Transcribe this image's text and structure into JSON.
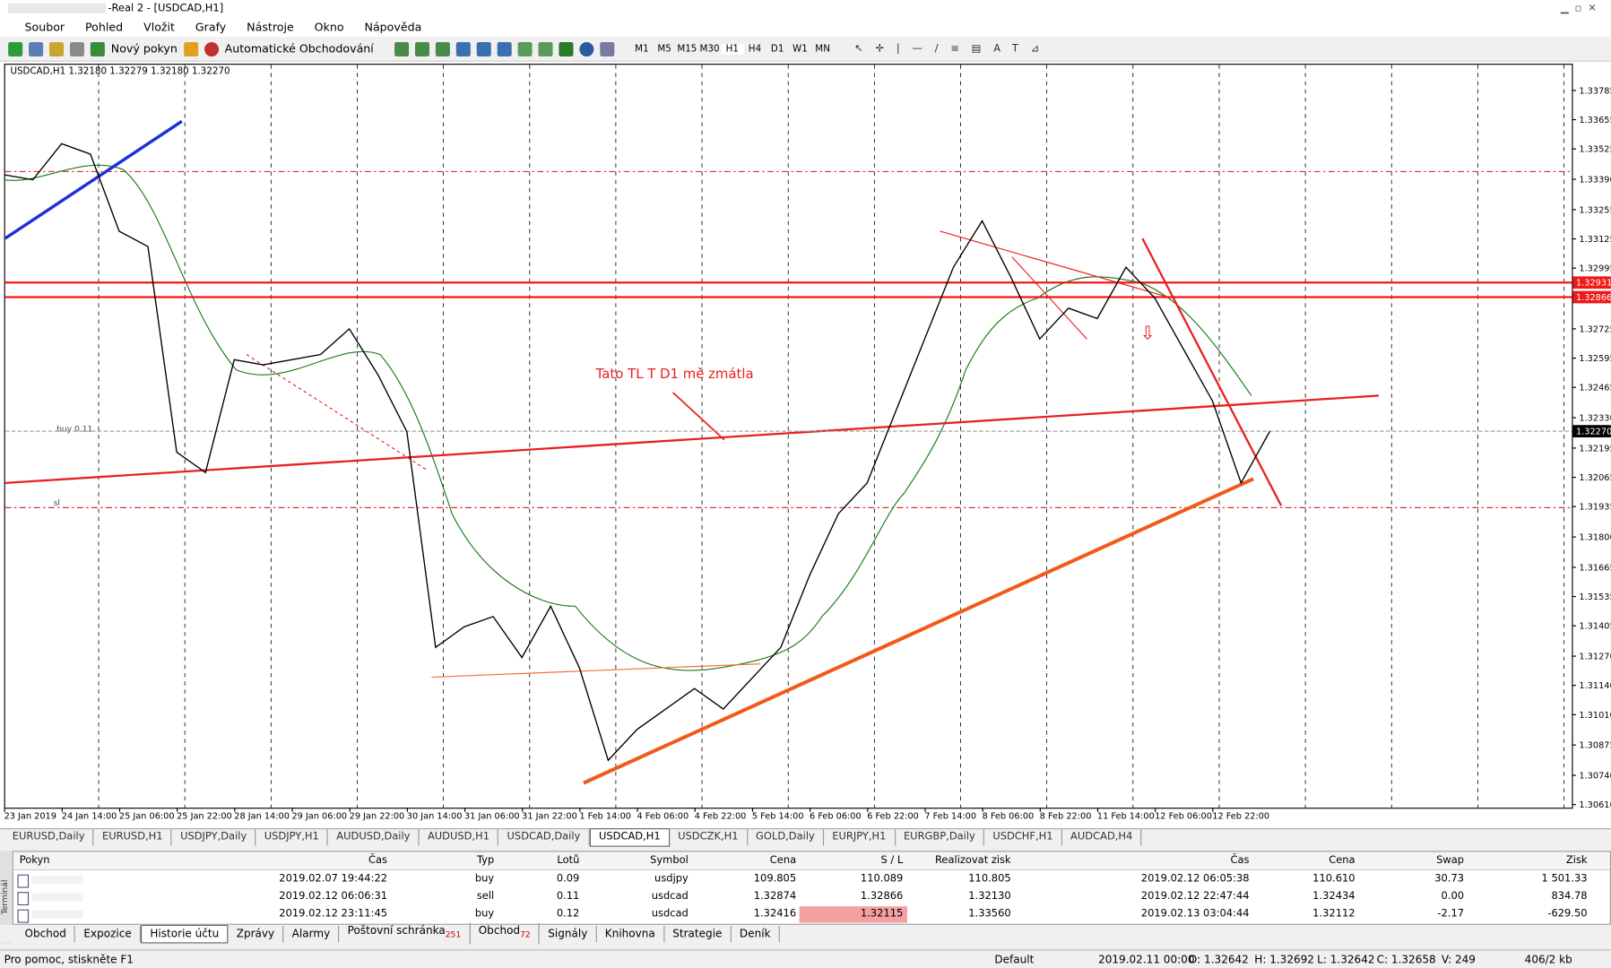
{
  "window": {
    "title": "-Real 2 - [USDCAD,H1]"
  },
  "menu": [
    "Soubor",
    "Pohled",
    "Vložit",
    "Grafy",
    "Nástroje",
    "Okno",
    "Nápověda"
  ],
  "toolbar": {
    "new_order": "Nový pokyn",
    "auto_trading": "Automatické Obchodování",
    "timeframes": [
      "M1",
      "M5",
      "M15",
      "M30",
      "H1",
      "H4",
      "D1",
      "W1",
      "MN"
    ]
  },
  "chart_data": {
    "type": "line",
    "header": "USDCAD,H1  1.32180 1.32279 1.32180 1.32270",
    "categories": [
      "23 Jan 2019",
      null,
      "24 Jan 14:00",
      null,
      "25 Jan 06:00",
      null,
      "25 Jan 22:00",
      null,
      "28 Jan 14:00",
      null,
      "29 Jan 06:00",
      null,
      "29 Jan 22:00",
      null,
      "30 Jan 14:00",
      null,
      "31 Jan 06:00",
      null,
      "31 Jan 22:00",
      null,
      "1 Feb 14:00",
      null,
      "4 Feb 06:00",
      null,
      "4 Feb 22:00",
      null,
      "5 Feb 14:00",
      null,
      "6 Feb 06:00",
      null,
      "6 Feb 22:00",
      null,
      "7 Feb 14:00",
      null,
      "8 Feb 06:00",
      null,
      "8 Feb 22:00",
      null,
      "11 Feb 14:00",
      null,
      "12 Feb 06:00",
      null,
      "12 Feb 22:00",
      null,
      null
    ],
    "series": [
      {
        "name": "USDCAD,H1",
        "color": "#000000",
        "values": [
          1.3341,
          1.33388,
          1.33548,
          1.33502,
          1.33159,
          1.33091,
          1.32177,
          1.32086,
          1.32588,
          1.32565,
          1.32588,
          1.32611,
          1.32725,
          1.3252,
          1.32268,
          1.31309,
          1.31401,
          1.31446,
          1.31264,
          1.31492,
          1.31218,
          1.30807,
          1.30944,
          1.31035,
          1.31126,
          1.31035,
          1.31172,
          1.31309,
          1.31629,
          1.31903,
          1.3204,
          1.3236,
          1.3268,
          1.32999,
          1.33205,
          1.32954,
          1.3268,
          1.32817,
          1.32771,
          1.32999,
          1.32862,
          1.32634,
          1.32406,
          1.3204,
          1.3227
        ]
      }
    ],
    "ylim": [
      1.3061,
      1.33785
    ],
    "yticks": [
      1.33785,
      1.33655,
      1.33525,
      {
        "value": 1.3339,
        "label": "1.33390"
      },
      1.33255,
      1.33125,
      1.32995,
      1.32725,
      1.32595,
      1.32465,
      {
        "value": 1.3233,
        "label": "1.32330"
      },
      1.32195,
      1.32065,
      1.31935,
      {
        "value": 1.318,
        "label": "1.31800"
      },
      1.31665,
      1.31535,
      1.31405,
      {
        "value": 1.3127,
        "label": "1.31270"
      },
      {
        "value": 1.3114,
        "label": "1.31140"
      },
      {
        "value": 1.3101,
        "label": "1.31010"
      },
      1.30875,
      {
        "value": 1.3074,
        "label": "1.30740"
      },
      {
        "value": 1.3061,
        "label": "1.30610"
      }
    ],
    "hlines": [
      1.32931,
      1.32866
    ],
    "current_price": {
      "value": 1.3227,
      "label": "1.32270"
    },
    "annotation": "Tato TL T D1 mě zmátla",
    "order_labels": [
      "buy 0.11",
      "sl"
    ]
  },
  "symbol_tabs": [
    "EURUSD,Daily",
    "EURUSD,H1",
    "USDJPY,Daily",
    "USDJPY,H1",
    "AUDUSD,Daily",
    "AUDUSD,H1",
    "USDCAD,Daily",
    "USDCAD,H1",
    "USDCZK,H1",
    "GOLD,Daily",
    "EURJPY,H1",
    "EURGBP,Daily",
    "USDCHF,H1",
    "AUDCAD,H4"
  ],
  "table": {
    "columns": [
      "Pokyn",
      "Čas",
      "Typ",
      "Lotů",
      "Symbol",
      "Cena",
      "S / L",
      "Realizovat zisk",
      "Čas",
      "Cena",
      "Swap",
      "Zisk"
    ],
    "rows": [
      [
        "2019.02.07 19:44:22",
        "buy",
        "0.09",
        "usdjpy",
        "109.805",
        "110.089",
        "110.805",
        "2019.02.12 06:05:38",
        "110.610",
        "30.73",
        "1 501.33"
      ],
      [
        "2019.02.12 06:06:31",
        "sell",
        "0.11",
        "usdcad",
        "1.32874",
        "1.32866",
        "1.32130",
        "2019.02.12 22:47:44",
        "1.32434",
        "0.00",
        "834.78"
      ],
      [
        "2019.02.12 23:11:45",
        "buy",
        "0.12",
        "usdcad",
        "1.32416",
        "1.32115",
        "1.33560",
        "2019.02.13 03:04:44",
        "1.32112",
        "-2.17",
        "-629.50"
      ]
    ]
  },
  "terminal_tabs": [
    {
      "label": "Obchod"
    },
    {
      "label": "Expozice"
    },
    {
      "label": "Historie účtu"
    },
    {
      "label": "Zprávy"
    },
    {
      "label": "Alarmy"
    },
    {
      "label": "Poštovní schránka",
      "count": 251
    },
    {
      "label": "Obchod",
      "count": 72
    },
    {
      "label": "Signály"
    },
    {
      "label": "Knihovna"
    },
    {
      "label": "Strategie"
    },
    {
      "label": "Deník"
    }
  ],
  "status": [
    "Pro pomoc, stiskněte F1",
    "Default",
    "2019.02.11 00:00",
    "O: 1.32642",
    "H: 1.32692",
    "L: 1.32642",
    "C: 1.32658",
    "V: 249",
    "406/2 kb"
  ]
}
